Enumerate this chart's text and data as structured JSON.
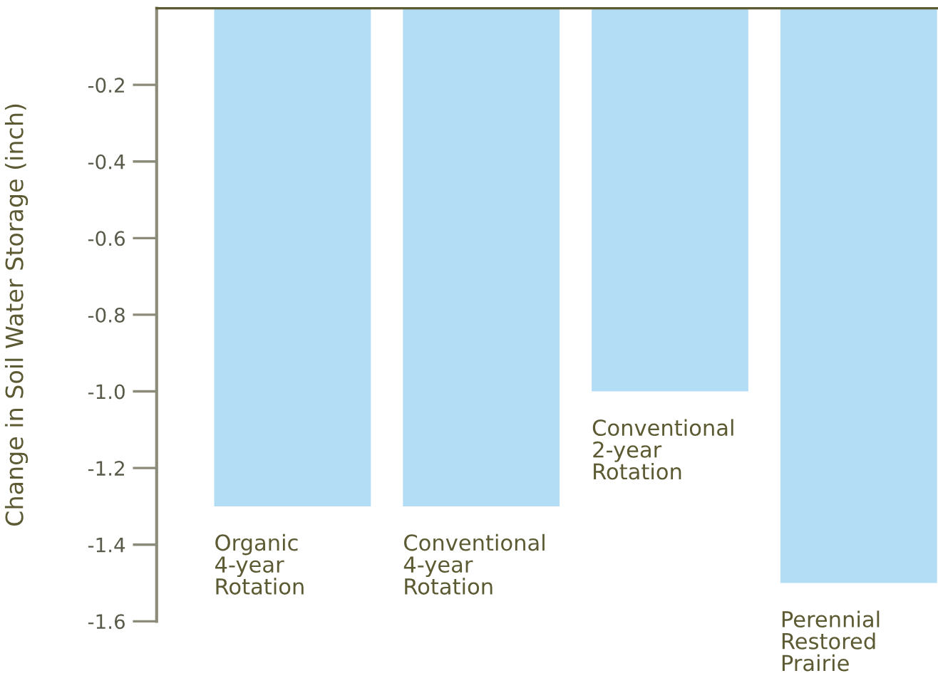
{
  "chart_data": {
    "type": "bar",
    "ylabel": "Change in Soil Water Storage (inch)",
    "categories": [
      "Organic\n4-year\nRotation",
      "Conventional\n4-year\nRotation",
      "Conventional\n2-year\nRotation",
      "Perennial\nRestored\nPrairie"
    ],
    "values": [
      -1.3,
      -1.3,
      -1.0,
      -1.5
    ],
    "color": "#b3dcf5",
    "ylim": [
      -1.6,
      0
    ],
    "yticks": [
      -0.2,
      -0.4,
      -0.6,
      -0.8,
      {
        "value": -1.0,
        "label": "-1.0"
      },
      -1.2,
      -1.4,
      -1.6
    ],
    "grid": false,
    "tick_labels": "y"
  }
}
